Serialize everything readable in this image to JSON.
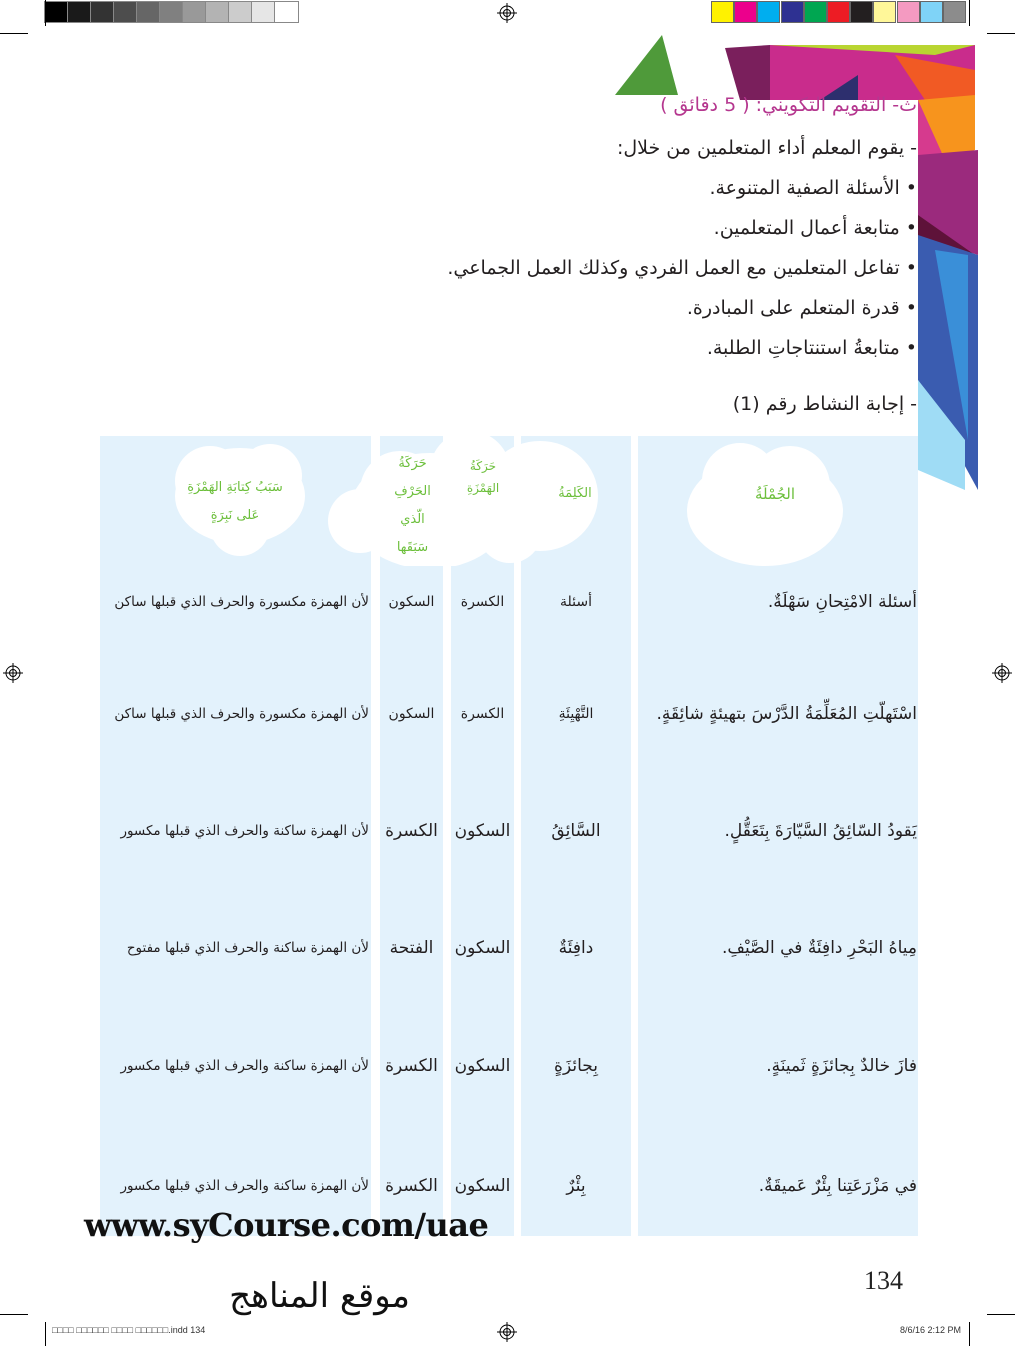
{
  "print_marks": {
    "gray_swatches": [
      "#000000",
      "#1a1a1a",
      "#333333",
      "#4d4d4d",
      "#666666",
      "#808080",
      "#999999",
      "#b3b3b3",
      "#cccccc",
      "#e6e6e6",
      "#ffffff"
    ],
    "color_swatches": [
      "#fff200",
      "#ec008c",
      "#00aeef",
      "#2e3192",
      "#00a651",
      "#ed1c24",
      "#231f20",
      "#fff799",
      "#f49ac1",
      "#7fd3f7",
      "#8c8c8c"
    ],
    "slug_filename": "□□□□ □□□□□□ □□□□ □□□□□□.indd   134",
    "slug_date": "8/6/16   2:12 PM"
  },
  "section": {
    "heading": "ث- التقويم التكويني: ( 5 دقائق )",
    "intro": "- يقوم المعلم أداء المتعلمين من خلال:",
    "bullets": [
      "• الأسئلة الصفية المتنوعة.",
      "• متابعة أعمال المتعلمين.",
      "• تفاعل المتعلمين مع العمل الفردي وكذلك العمل الجماعي.",
      "• قدرة المتعلم على المبادرة.",
      "• متابعةُ استنتاجاتِ الطلبة."
    ],
    "activity": "- إجابة النشاط رقم (1)"
  },
  "table": {
    "headers": {
      "sentence": "الجُمْلَةُ",
      "word": "الكَلِمَةُ",
      "hamza_vowel": "حَرَكَةُ الهَمْزَةِ",
      "prev_letter_vowel": "حَرَكَةُ الحَرْفِ الّذي سَبَقَها",
      "reason": "سَبَبُ كِتابَةِ الهَمْزَةِ عَلى نَبِرَةٍ"
    },
    "rows": [
      {
        "sentence": "أسئلة الامْتِحانِ سَهْلَةٌ.",
        "word": "أسئلة",
        "col3": "الكسرة",
        "col4": "السكون",
        "reason": "لأن الهمزة مكسورة والحرف الذي قبلها ساكن"
      },
      {
        "sentence": "اسْتَهلّتِ المُعَلِّمَةُ الدَّرْسَ بتهيئةٍ شائِقَةٍ.",
        "word": "التَّهْيِئَةِ",
        "col3": "الكسرة",
        "col4": "السكون",
        "reason": "لأن الهمزة مكسورة والحرف الذي قبلها ساكن"
      },
      {
        "sentence": "يَقودُ السّائِقُ السَّيّارَةَ بِتَعَقُّلٍ.",
        "word": "السَّائِقُ",
        "col3": "السكون",
        "col4": "الكسرة",
        "reason": "لأن الهمزة ساكنة والحرف الذي قبلها مكسور"
      },
      {
        "sentence": "مِياهُ البَحْرِ دافِئَةٌ في الصَّيْفِ.",
        "word": "دافِئَةٌ",
        "col3": "السكون",
        "col4": "الفتحة",
        "reason": "لأن الهمزة ساكنة والحرف الذي قبلها مفتوح"
      },
      {
        "sentence": "فازَ خالدٌ بِجائزَةٍ ثَمينَةٍ.",
        "word": "بِجائزَةٍ",
        "col3": "السكون",
        "col4": "الكسرة",
        "reason": "لأن الهمزة ساكنة والحرف الذي قبلها مكسور"
      },
      {
        "sentence": "في مَزْرَعَتِنا بِئْرٌ عَميقَةٌ.",
        "word": "بِئْرٌ",
        "col3": "السكون",
        "col4": "الكسرة",
        "reason": "لأن الهمزة ساكنة والحرف الذي قبلها مكسور"
      }
    ]
  },
  "watermark_url": "www.syCourse.com/uae",
  "watermark_arabic": "موقع المناهج",
  "page_number": "134",
  "colors": {
    "heading": "#b5378f",
    "header_text": "#6cbf3b",
    "table_bg": "#e3f2fc"
  }
}
